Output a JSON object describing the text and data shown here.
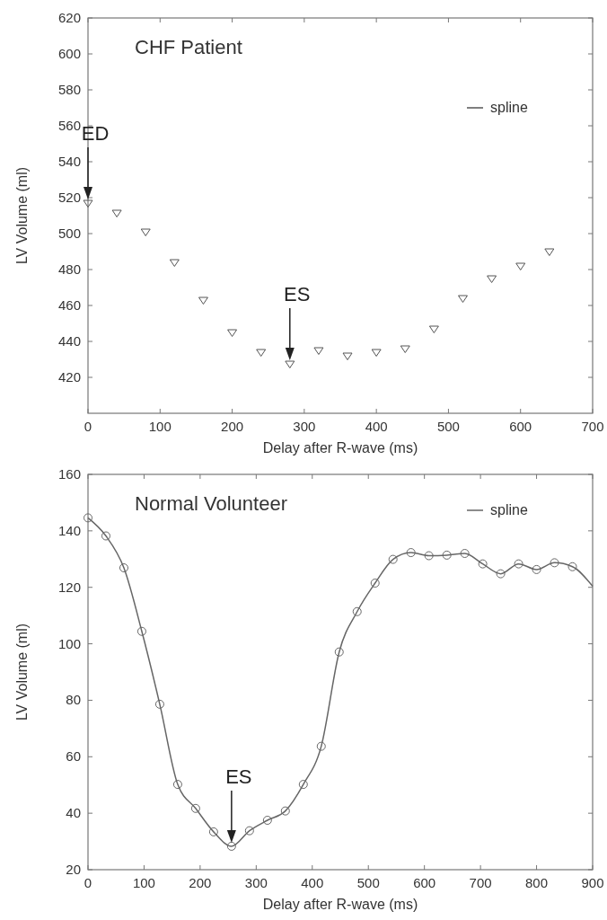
{
  "chart_data": [
    {
      "type": "scatter",
      "title": "CHF Patient",
      "xlabel": "Delay after R-wave (ms)",
      "ylabel": "LV Volume (ml)",
      "xlim": [
        0,
        700
      ],
      "xticks": [
        0,
        100,
        200,
        300,
        400,
        500,
        600,
        700
      ],
      "ylim": [
        400,
        620
      ],
      "yticks": [
        420,
        440,
        460,
        480,
        500,
        520,
        540,
        560,
        580,
        600,
        620
      ],
      "grid": false,
      "legend": "top right",
      "marker": "triangle",
      "annotations": [
        {
          "text": "ED",
          "x": 0,
          "y": 517
        },
        {
          "text": "ES",
          "x": 280,
          "y": 427.5
        }
      ],
      "series": [
        {
          "name": "spline",
          "color": "#555555",
          "x": [
            0,
            40,
            80,
            120,
            160,
            200,
            240,
            280,
            320,
            360,
            400,
            440,
            480,
            520,
            560,
            600,
            640
          ],
          "values": [
            517,
            511.5,
            501,
            484,
            463,
            445,
            434,
            427.5,
            435,
            432,
            434,
            436,
            447,
            464,
            475,
            482,
            490
          ]
        }
      ]
    },
    {
      "type": "line",
      "title": "Normal Volunteer",
      "xlabel": "Delay after R-wave (ms)",
      "ylabel": "LV Volume (ml)",
      "xlim": [
        0,
        900
      ],
      "xticks": [
        0,
        100,
        200,
        300,
        400,
        500,
        600,
        700,
        800,
        900
      ],
      "ylim": [
        20,
        160
      ],
      "yticks": [
        20,
        40,
        60,
        80,
        100,
        120,
        140,
        160
      ],
      "grid": false,
      "legend": "top right",
      "line_style": "solid",
      "annotations": [
        {
          "text": "ES",
          "x": 256,
          "y": 28.3
        }
      ],
      "series": [
        {
          "type": "scatter",
          "color": "#666666",
          "marker": "circle",
          "x": [
            0,
            32,
            64,
            96,
            128,
            160,
            192,
            224,
            256,
            288,
            320,
            352,
            384,
            416,
            448,
            480,
            512,
            544,
            576,
            608,
            640,
            672,
            704,
            736,
            768,
            800,
            832,
            864
          ],
          "values": [
            144.6,
            138.2,
            126.9,
            104.4,
            78.6,
            50.2,
            41.7,
            33.4,
            28.3,
            33.8,
            37.5,
            40.8,
            50.2,
            63.7,
            97.1,
            111.4,
            121.5,
            129.9,
            132.3,
            131.2,
            131.4,
            132,
            128.3,
            124.8,
            128.3,
            126.3,
            128.7,
            127.3
          ]
        },
        {
          "name": "spline",
          "color": "#666666",
          "x": [
            0,
            32,
            64,
            96,
            128,
            160,
            192,
            224,
            256,
            288,
            320,
            352,
            384,
            416,
            448,
            480,
            512,
            544,
            576,
            608,
            640,
            672,
            704,
            736,
            768,
            800,
            832,
            864,
            900
          ],
          "values": [
            144.6,
            138.2,
            126.9,
            104.4,
            78.6,
            50.2,
            41.7,
            33.4,
            28.3,
            33.8,
            37.5,
            40.8,
            50.2,
            63.7,
            97.1,
            111.4,
            121.5,
            129.9,
            132.3,
            131.2,
            131.4,
            132,
            128.3,
            124.8,
            128.3,
            126.3,
            128.7,
            127.3,
            120.4
          ]
        }
      ]
    }
  ]
}
